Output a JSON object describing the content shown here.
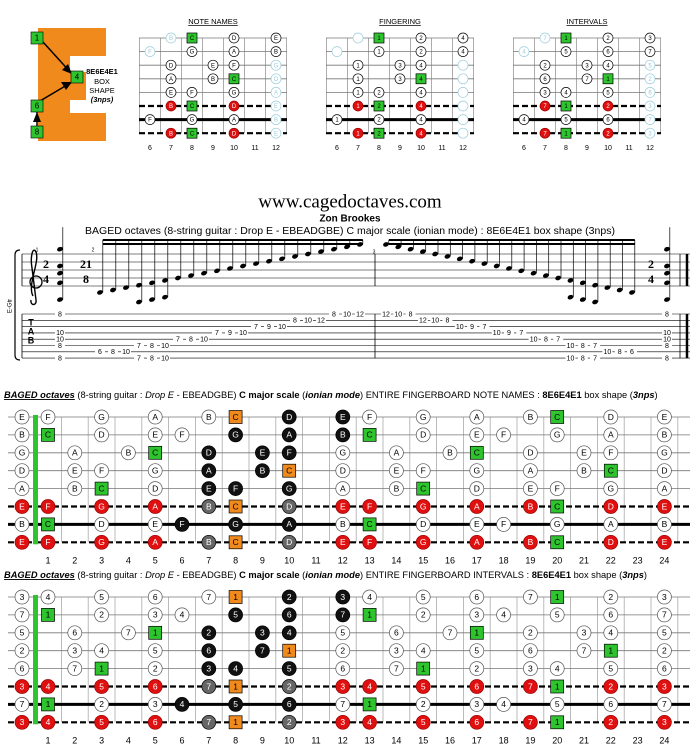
{
  "logo": {
    "squares": [
      "1",
      "4",
      "6",
      "8"
    ],
    "shape_name": "8E6E4E1",
    "shape_lines": [
      "BOX",
      "SHAPE",
      "(3nps)"
    ]
  },
  "mini_diagrams": {
    "titles": [
      "NOTE NAMES",
      "FINGERING",
      "INTERVALS"
    ],
    "frets": [
      6,
      7,
      8,
      9,
      10,
      11,
      12
    ],
    "fingers": [
      [
        1,
        2,
        4
      ],
      [
        1,
        2,
        4
      ],
      [
        1,
        3,
        4
      ],
      [
        1,
        3,
        4
      ],
      [
        1,
        2,
        4
      ],
      [
        1,
        2,
        4
      ],
      [
        1,
        2,
        4
      ],
      [
        1,
        2,
        4
      ]
    ]
  },
  "box_frets": [
    [
      8,
      10,
      12
    ],
    [
      8,
      10,
      12
    ],
    [
      7,
      9,
      10
    ],
    [
      7,
      9,
      10
    ],
    [
      7,
      8,
      10
    ],
    [
      7,
      8,
      10
    ],
    [
      6,
      8,
      10
    ],
    [
      7,
      8,
      10
    ]
  ],
  "header": {
    "site": "www.cagedoctaves.com",
    "author": "Zon Brookes",
    "subtitle": "BAGED octaves (8-string guitar : Drop E - EBEADGBE) C major scale (ionian mode) : 8E6E4E1 box shape (3nps)"
  },
  "notation": {
    "instrument": "E-Gtr",
    "measure_numbers": [
      "1",
      "2",
      "3"
    ],
    "tab_letters": [
      "T",
      "A",
      "B"
    ],
    "time_signatures": [
      [
        "2",
        "4"
      ],
      [
        "21",
        "8"
      ],
      [
        "2",
        "4"
      ]
    ],
    "columns": [
      [
        [
          1,
          8
        ],
        [
          4,
          10
        ],
        [
          5,
          10
        ],
        [
          6,
          8
        ],
        [
          8,
          8
        ]
      ],
      [
        [
          7,
          6
        ]
      ],
      [
        [
          7,
          8
        ]
      ],
      [
        [
          7,
          10
        ]
      ],
      [
        [
          6,
          7
        ],
        [
          8,
          7
        ]
      ],
      [
        [
          6,
          8
        ],
        [
          8,
          8
        ]
      ],
      [
        [
          6,
          10
        ],
        [
          8,
          10
        ]
      ],
      [
        [
          5,
          7
        ]
      ],
      [
        [
          5,
          8
        ]
      ],
      [
        [
          5,
          10
        ]
      ],
      [
        [
          4,
          7
        ]
      ],
      [
        [
          4,
          9
        ]
      ],
      [
        [
          4,
          10
        ]
      ],
      [
        [
          3,
          7
        ]
      ],
      [
        [
          3,
          9
        ]
      ],
      [
        [
          3,
          10
        ]
      ],
      [
        [
          2,
          8
        ]
      ],
      [
        [
          2,
          10
        ]
      ],
      [
        [
          2,
          12
        ]
      ],
      [
        [
          1,
          8
        ]
      ],
      [
        [
          1,
          10
        ]
      ],
      [
        [
          1,
          12
        ]
      ],
      [
        [
          1,
          12
        ]
      ],
      [
        [
          1,
          10
        ]
      ],
      [
        [
          1,
          8
        ]
      ],
      [
        [
          2,
          12
        ]
      ],
      [
        [
          2,
          10
        ]
      ],
      [
        [
          2,
          8
        ]
      ],
      [
        [
          3,
          10
        ]
      ],
      [
        [
          3,
          9
        ]
      ],
      [
        [
          3,
          7
        ]
      ],
      [
        [
          4,
          10
        ]
      ],
      [
        [
          4,
          9
        ]
      ],
      [
        [
          4,
          7
        ]
      ],
      [
        [
          5,
          10
        ]
      ],
      [
        [
          5,
          8
        ]
      ],
      [
        [
          5,
          7
        ]
      ],
      [
        [
          6,
          10
        ],
        [
          8,
          10
        ]
      ],
      [
        [
          6,
          8
        ],
        [
          8,
          8
        ]
      ],
      [
        [
          6,
          7
        ],
        [
          8,
          7
        ]
      ],
      [
        [
          7,
          10
        ]
      ],
      [
        [
          7,
          8
        ]
      ],
      [
        [
          7,
          6
        ]
      ],
      [
        [
          1,
          8
        ],
        [
          4,
          10
        ],
        [
          5,
          10
        ],
        [
          6,
          8
        ],
        [
          8,
          8
        ]
      ]
    ]
  },
  "boards": [
    {
      "title_segments": [
        "BAGED octaves",
        " (8-string guitar : ",
        "Drop E",
        " - EBEADGBE) ",
        "C major scale",
        " (",
        "ionian mode",
        ") ENTIRE FINGERBOARD NOTE NAMES : ",
        "8E6E4E1",
        " box shape (",
        "3nps",
        ")"
      ],
      "root": "C",
      "frets": [
        null,
        1,
        2,
        3,
        4,
        5,
        6,
        7,
        8,
        9,
        10,
        11,
        12,
        13,
        14,
        15,
        16,
        17,
        18,
        19,
        20,
        21,
        22,
        23,
        24
      ],
      "strings": [
        [
          "E",
          "F",
          null,
          "G",
          null,
          "A",
          null,
          "B",
          "C",
          null,
          "D",
          null,
          "E",
          "F",
          null,
          "G",
          null,
          "A",
          null,
          "B",
          "C",
          null,
          "D",
          null,
          "E"
        ],
        [
          "B",
          "C",
          null,
          "D",
          null,
          "E",
          "F",
          null,
          "G",
          null,
          "A",
          null,
          "B",
          "C",
          null,
          "D",
          null,
          "E",
          "F",
          null,
          "G",
          null,
          "A",
          null,
          "B"
        ],
        [
          "G",
          null,
          "A",
          null,
          "B",
          "C",
          null,
          "D",
          null,
          "E",
          "F",
          null,
          "G",
          null,
          "A",
          null,
          "B",
          "C",
          null,
          "D",
          null,
          "E",
          "F",
          null,
          "G"
        ],
        [
          "D",
          null,
          "E",
          "F",
          null,
          "G",
          null,
          "A",
          null,
          "B",
          "C",
          null,
          "D",
          null,
          "E",
          "F",
          null,
          "G",
          null,
          "A",
          null,
          "B",
          "C",
          null,
          "D"
        ],
        [
          "A",
          null,
          "B",
          "C",
          null,
          "D",
          null,
          "E",
          "F",
          null,
          "G",
          null,
          "A",
          null,
          "B",
          "C",
          null,
          "D",
          null,
          "E",
          "F",
          null,
          "G",
          null,
          "A"
        ],
        [
          "E",
          "F",
          null,
          "G",
          null,
          "A",
          null,
          "B",
          "C",
          null,
          "D",
          null,
          "E",
          "F",
          null,
          "G",
          null,
          "A",
          null,
          "B",
          "C",
          null,
          "D",
          null,
          "E"
        ],
        [
          "B",
          "C",
          null,
          "D",
          null,
          "E",
          "F",
          null,
          "G",
          null,
          "A",
          null,
          "B",
          "C",
          null,
          "D",
          null,
          "E",
          "F",
          null,
          "G",
          null,
          "A",
          null,
          "B"
        ],
        [
          "E",
          "F",
          null,
          "G",
          null,
          "A",
          null,
          "B",
          "C",
          null,
          "D",
          null,
          "E",
          "F",
          null,
          "G",
          null,
          "A",
          null,
          "B",
          "C",
          null,
          "D",
          null,
          "E"
        ]
      ]
    },
    {
      "title_segments": [
        "BAGED octaves",
        " (8-string guitar : ",
        "Drop E",
        " - EBEADGBE) ",
        "C major scale",
        " (",
        "ionian mode",
        ") ENTIRE FINGERBOARD INTERVALS : ",
        "8E6E4E1",
        " box shape (",
        "3nps",
        ")"
      ],
      "root": "1",
      "frets": [
        null,
        1,
        2,
        3,
        4,
        5,
        6,
        7,
        8,
        9,
        10,
        11,
        12,
        13,
        14,
        15,
        16,
        17,
        18,
        19,
        20,
        21,
        22,
        23,
        24
      ],
      "strings": [
        [
          "3",
          "4",
          null,
          "5",
          null,
          "6",
          null,
          "7",
          "1",
          null,
          "2",
          null,
          "3",
          "4",
          null,
          "5",
          null,
          "6",
          null,
          "7",
          "1",
          null,
          "2",
          null,
          "3"
        ],
        [
          "7",
          "1",
          null,
          "2",
          null,
          "3",
          "4",
          null,
          "5",
          null,
          "6",
          null,
          "7",
          "1",
          null,
          "2",
          null,
          "3",
          "4",
          null,
          "5",
          null,
          "6",
          null,
          "7"
        ],
        [
          "5",
          null,
          "6",
          null,
          "7",
          "1",
          null,
          "2",
          null,
          "3",
          "4",
          null,
          "5",
          null,
          "6",
          null,
          "7",
          "1",
          null,
          "2",
          null,
          "3",
          "4",
          null,
          "5"
        ],
        [
          "2",
          null,
          "3",
          "4",
          null,
          "5",
          null,
          "6",
          null,
          "7",
          "1",
          null,
          "2",
          null,
          "3",
          "4",
          null,
          "5",
          null,
          "6",
          null,
          "7",
          "1",
          null,
          "2"
        ],
        [
          "6",
          null,
          "7",
          "1",
          null,
          "2",
          null,
          "3",
          "4",
          null,
          "5",
          null,
          "6",
          null,
          "7",
          "1",
          null,
          "2",
          null,
          "3",
          "4",
          null,
          "5",
          null,
          "6"
        ],
        [
          "3",
          "4",
          null,
          "5",
          null,
          "6",
          null,
          "7",
          "1",
          null,
          "2",
          null,
          "3",
          "4",
          null,
          "5",
          null,
          "6",
          null,
          "7",
          "1",
          null,
          "2",
          null,
          "3"
        ],
        [
          "7",
          "1",
          null,
          "2",
          null,
          "3",
          "4",
          null,
          "5",
          null,
          "6",
          null,
          "7",
          "1",
          null,
          "2",
          null,
          "3",
          "4",
          null,
          "5",
          null,
          "6",
          null,
          "7"
        ],
        [
          "3",
          "4",
          null,
          "5",
          null,
          "6",
          null,
          "7",
          "1",
          null,
          "2",
          null,
          "3",
          "4",
          null,
          "5",
          null,
          "6",
          null,
          "7",
          "1",
          null,
          "2",
          null,
          "3"
        ]
      ]
    }
  ]
}
